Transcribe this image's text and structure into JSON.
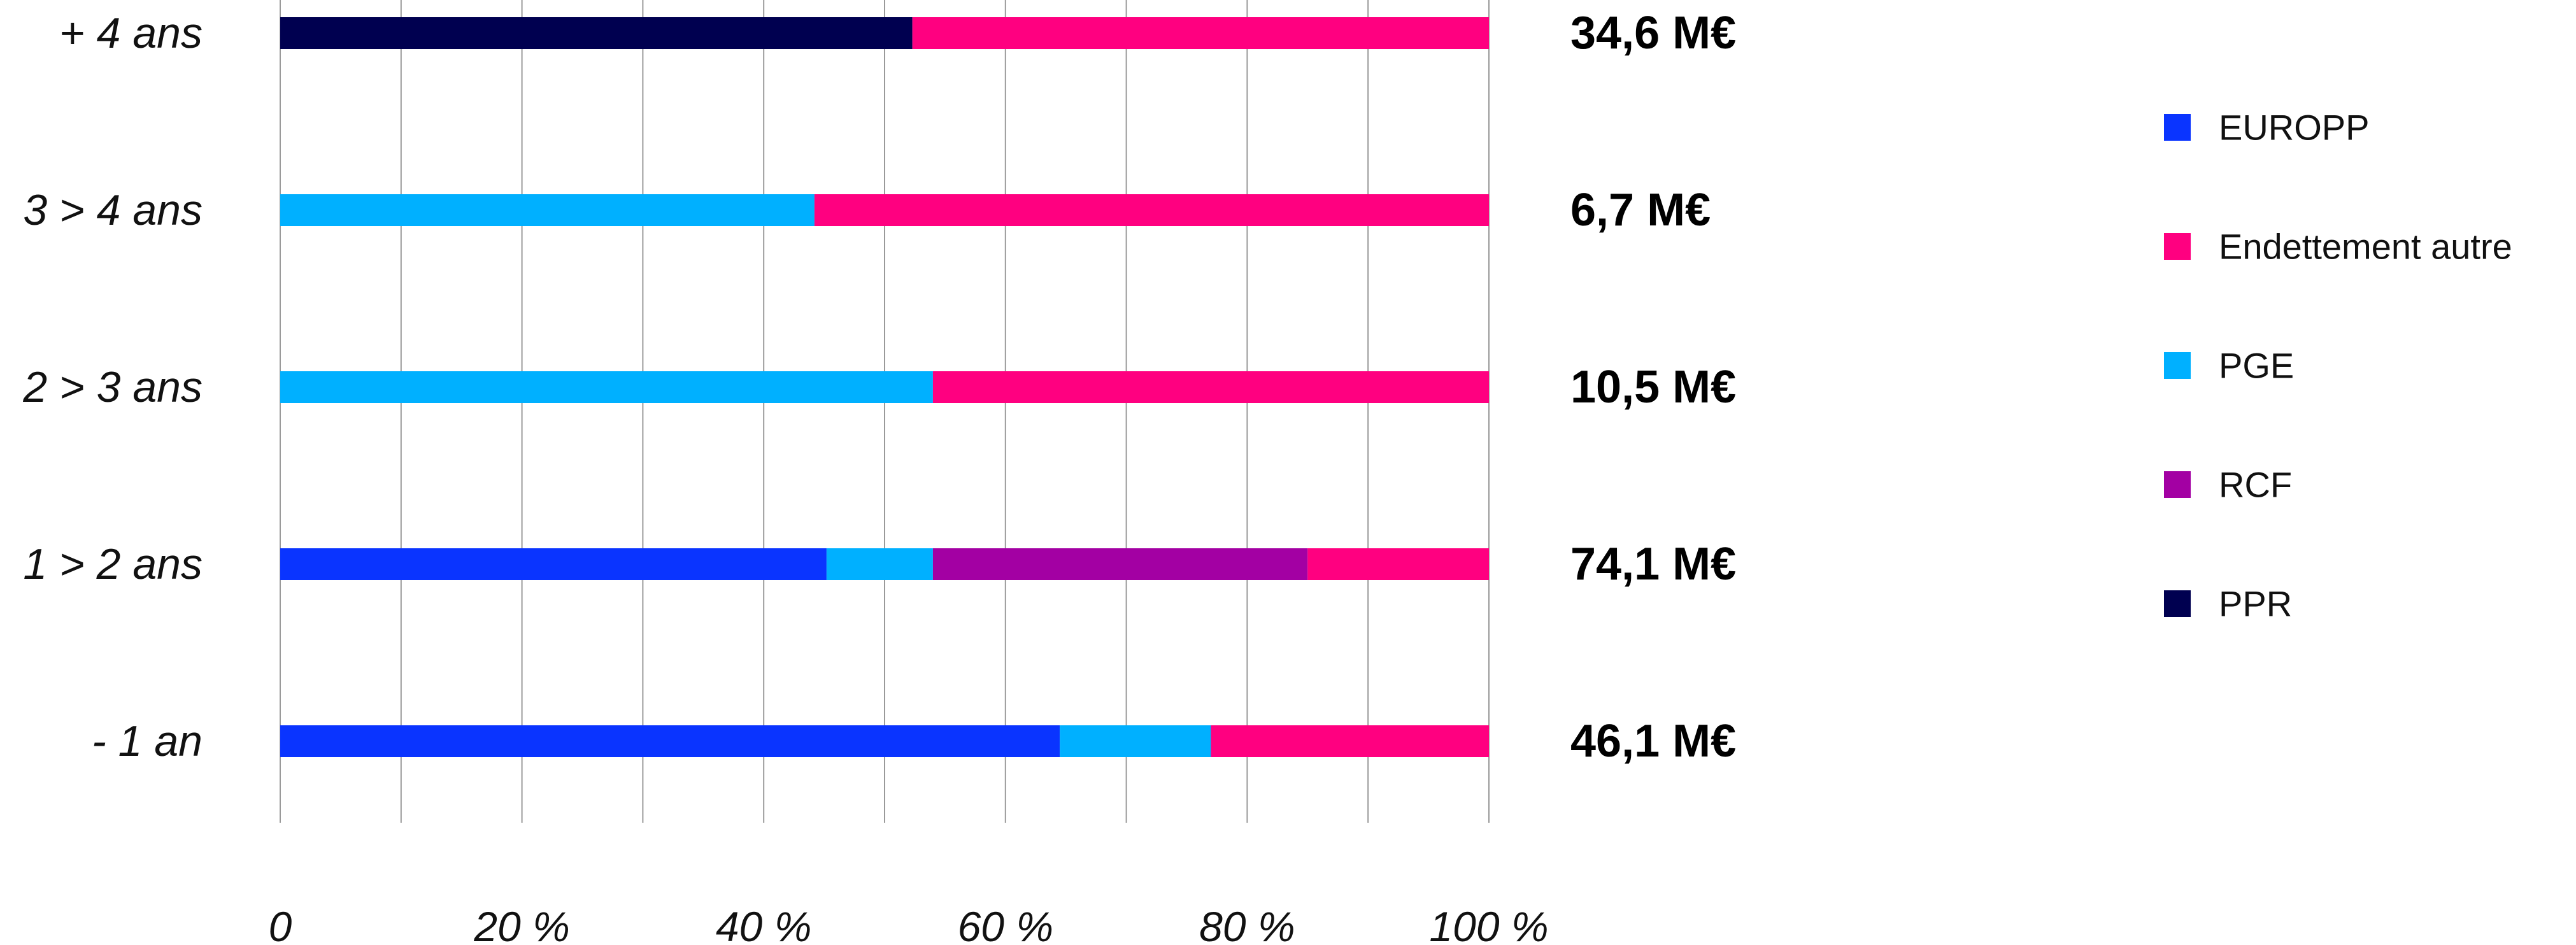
{
  "chart_data": {
    "type": "bar",
    "orientation": "horizontal",
    "stacked": "percent",
    "categories": [
      "+ 4 ans",
      "3 > 4 ans",
      "2 > 3 ans",
      "1 > 2 ans",
      "- 1 an"
    ],
    "totals": [
      "34,6 M€",
      "6,7 M€",
      "10,5 M€",
      "74,1 M€",
      "46,1 M€"
    ],
    "series": [
      {
        "name": "EUROPP",
        "color": "#0a34ff",
        "values": [
          0,
          0,
          0,
          45.2,
          64.5
        ]
      },
      {
        "name": "PGE",
        "color": "#00b0ff",
        "values": [
          0,
          44.2,
          54.0,
          8.8,
          12.5
        ]
      },
      {
        "name": "RCF",
        "color": "#a300a3",
        "values": [
          0,
          0,
          0,
          31.0,
          0
        ]
      },
      {
        "name": "PPR",
        "color": "#000050",
        "values": [
          52.3,
          0,
          0,
          0,
          0
        ]
      },
      {
        "name": "Endettement autre",
        "color": "#ff0080",
        "values": [
          47.7,
          55.8,
          46.0,
          15.0,
          23.0
        ]
      }
    ],
    "legend_order": [
      "EUROPP",
      "Endettement autre",
      "PGE",
      "RCF",
      "PPR"
    ],
    "xlim": [
      0,
      100
    ],
    "xticks": [
      0,
      20,
      40,
      60,
      80,
      100
    ],
    "xtick_labels": [
      "0",
      "20 %",
      "40 %",
      "60 %",
      "80 %",
      "100 %"
    ],
    "grid_step": 10,
    "grid": true,
    "legend_position": "right"
  }
}
